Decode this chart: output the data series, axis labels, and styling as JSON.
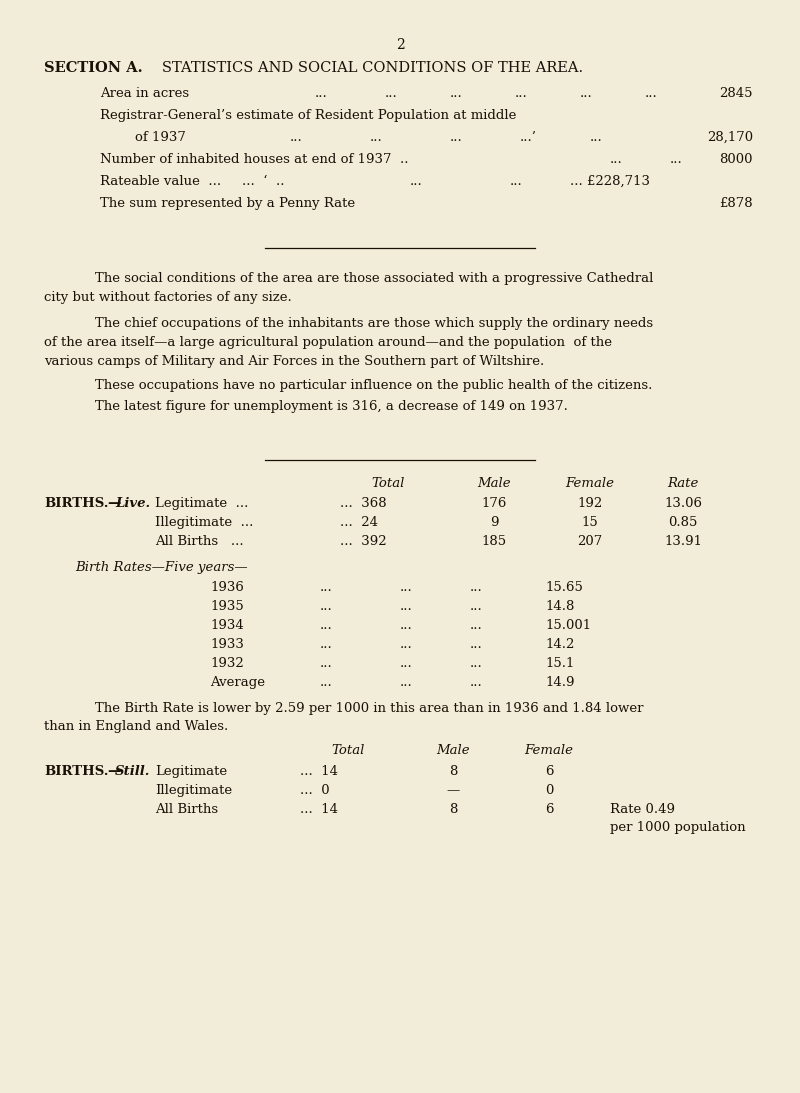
{
  "bg_color": "#f2edd8",
  "text_color": "#1a1008",
  "page_number": "2",
  "section_title": "SECTION A.",
  "section_subtitle": "STATISTICS AND SOCIAL CONDITIONS OF THE AREA.",
  "para1_indent": "The social conditions of the area are those associated with a progressive Cathedral",
  "para1_cont": "city but without factories of any size.",
  "para2_indent": "The chief occupations of the inhabitants are those which supply the ordinary needs",
  "para2_line2": "of the area itself—a large agricultural population around—and the population  of the",
  "para2_line3": "various camps of Military and Air Forces in the Southern part of Wiltshire.",
  "para3_indent": "These occupations have no particular influence on the public health of the citizens.",
  "para4_indent": "The latest figure for unemployment is 316, a decrease of 149 on 1937.",
  "birth_rate_note1": "The Birth Rate is lower by 2.59 per 1000 in this area than in 1936 and 1.84 lower",
  "birth_rate_note2": "than in England and Wales."
}
